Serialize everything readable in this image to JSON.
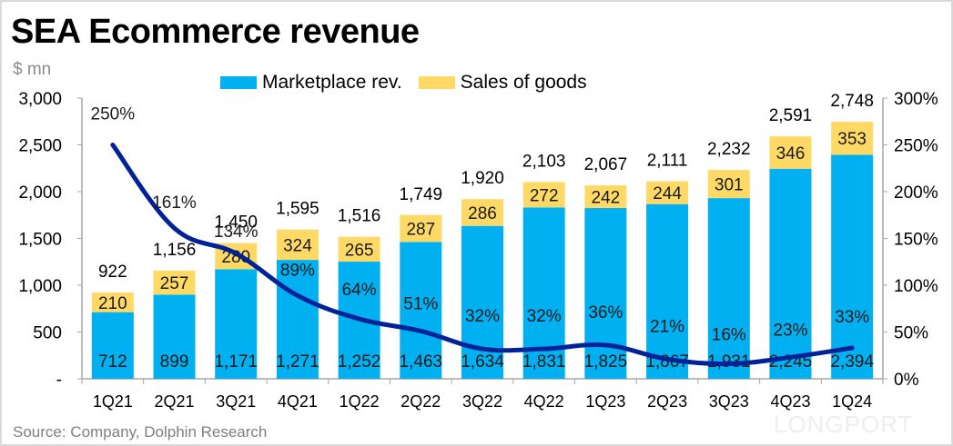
{
  "title": "SEA Ecommerce revenue",
  "unit_label": "$ mn",
  "source": "Source: Company, Dolphin Research",
  "brand_watermark": "LONGPORT",
  "colors": {
    "marketplace": "#00b0f0",
    "goods": "#ffd966",
    "growth_line": "#002299",
    "axis": "#a6a6a6"
  },
  "chart_data": {
    "type": "bar",
    "stacked": true,
    "title": "SEA Ecommerce revenue",
    "ylabel": "$ mn",
    "y2label": "",
    "categories": [
      "1Q21",
      "2Q21",
      "3Q21",
      "4Q21",
      "1Q22",
      "2Q22",
      "3Q22",
      "4Q22",
      "1Q23",
      "2Q23",
      "3Q23",
      "4Q23",
      "1Q24"
    ],
    "series": [
      {
        "name": "Marketplace rev.",
        "type": "bar",
        "axis": "left",
        "values": [
          712,
          899,
          1171,
          1271,
          1252,
          1463,
          1634,
          1831,
          1825,
          1867,
          1931,
          2245,
          2394
        ]
      },
      {
        "name": "Sales of goods",
        "type": "bar",
        "axis": "left",
        "values": [
          210,
          257,
          280,
          324,
          265,
          287,
          286,
          272,
          242,
          244,
          301,
          346,
          353
        ]
      },
      {
        "name": "YoY growth",
        "type": "line",
        "axis": "right",
        "unit": "%",
        "values": [
          250,
          161,
          134,
          89,
          64,
          51,
          32,
          32,
          36,
          21,
          16,
          23,
          33
        ]
      }
    ],
    "totals": [
      "922",
      "1,156",
      "1,450",
      "1,595",
      "1,516",
      "1,749",
      "1,920",
      "2,103",
      "2,067",
      "2,111",
      "2,232",
      "2,591",
      "2,748"
    ],
    "marketplace_labels": [
      "712",
      "899",
      "1,171",
      "1,271",
      "1,252",
      "1,463",
      "1,634",
      "1,831",
      "1,825",
      "1,867",
      "1,931",
      "2,245",
      "2,394"
    ],
    "goods_labels": [
      "210",
      "257",
      "280",
      "324",
      "265",
      "287",
      "286",
      "272",
      "242",
      "244",
      "301",
      "346",
      "353"
    ],
    "growth_labels": [
      "250%",
      "161%",
      "134%",
      "89%",
      "64%",
      "51%",
      "32%",
      "32%",
      "36%",
      "21%",
      "16%",
      "23%",
      "33%"
    ],
    "ylim": [
      0,
      3000
    ],
    "yticks": [
      0,
      500,
      1000,
      1500,
      2000,
      2500,
      3000
    ],
    "ytick_labels": [
      "-",
      "500",
      "1,000",
      "1,500",
      "2,000",
      "2,500",
      "3,000"
    ],
    "y2lim": [
      0,
      300
    ],
    "y2ticks": [
      0,
      50,
      100,
      150,
      200,
      250,
      300
    ],
    "y2tick_labels": [
      "0%",
      "50%",
      "100%",
      "150%",
      "200%",
      "250%",
      "300%"
    ],
    "legend": [
      "Marketplace rev.",
      "Sales of goods"
    ],
    "legend_position": "top-center",
    "grid": false
  }
}
